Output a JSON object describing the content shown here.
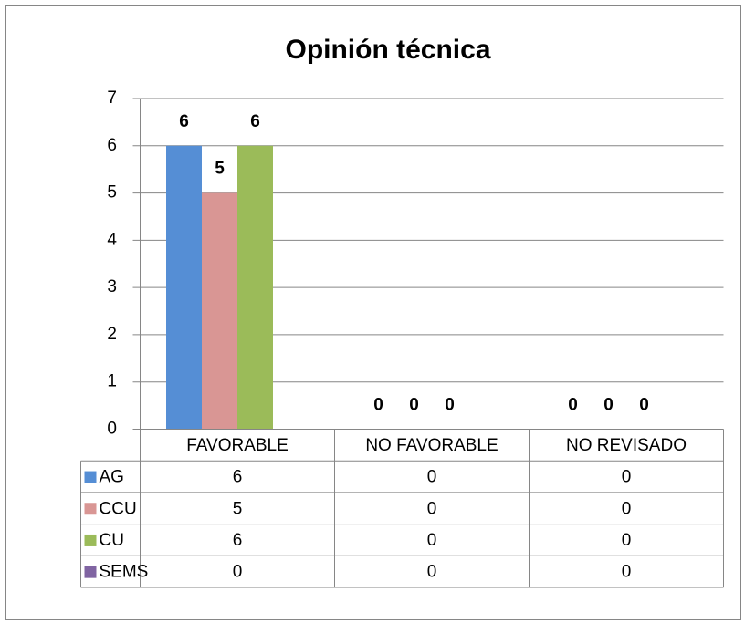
{
  "chart_data": {
    "type": "bar",
    "title": "Opinión técnica",
    "categories": [
      "FAVORABLE",
      "NO FAVORABLE",
      "NO REVISADO"
    ],
    "series": [
      {
        "name": "AG",
        "color": "#558ed5",
        "values": [
          6,
          0,
          0
        ],
        "show_values": true
      },
      {
        "name": "CCU",
        "color": "#d99694",
        "values": [
          5,
          0,
          0
        ],
        "show_values": true
      },
      {
        "name": "CU",
        "color": "#9bbb59",
        "values": [
          6,
          0,
          0
        ],
        "show_values": true
      },
      {
        "name": "SEMS",
        "color": "#8064a2",
        "values": [
          0,
          0,
          0
        ],
        "show_values": false
      }
    ],
    "ylim": [
      0,
      7
    ],
    "yticks": [
      0,
      1,
      2,
      3,
      4,
      5,
      6,
      7
    ],
    "grid": true,
    "data_table": true
  }
}
